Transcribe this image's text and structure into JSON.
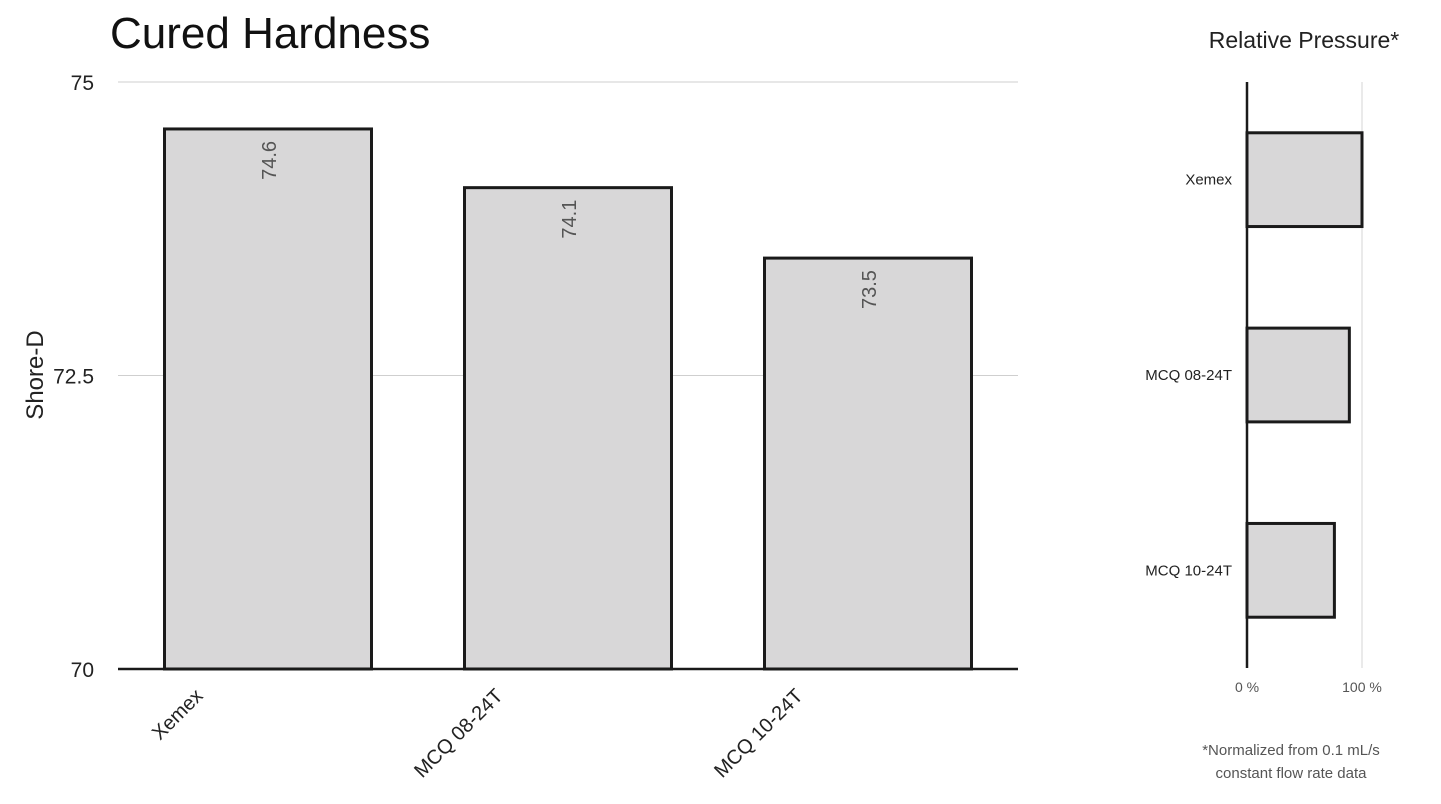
{
  "chart_data": [
    {
      "type": "bar",
      "title": "Cured Hardness",
      "xlabel": "",
      "ylabel": "Shore-D",
      "categories": [
        "Xemex",
        "MCQ 08-24T",
        "MCQ 10-24T"
      ],
      "values": [
        74.6,
        74.1,
        73.5
      ],
      "data_labels": [
        "74.6",
        "74.1",
        "73.5"
      ],
      "ylim": [
        70,
        75
      ],
      "yticks": [
        70,
        72.5,
        75
      ],
      "ytick_labels": [
        "70",
        "72.5",
        "75"
      ],
      "grid": true,
      "bar_fill": "#d8d7d8",
      "bar_stroke": "#1a1a1a"
    },
    {
      "type": "bar",
      "orientation": "horizontal",
      "title": "Relative Pressure*",
      "categories": [
        "Xemex",
        "MCQ 08-24T",
        "MCQ 10-24T"
      ],
      "values": [
        100,
        89,
        76
      ],
      "xlim": [
        0,
        100
      ],
      "xticks": [
        0,
        100
      ],
      "xtick_labels": [
        "0 %",
        "100 %"
      ],
      "grid": true,
      "bar_fill": "#d8d7d8",
      "bar_stroke": "#1a1a1a",
      "footnote": [
        "*Normalized from 0.1 mL/s",
        "constant flow rate data"
      ]
    }
  ]
}
